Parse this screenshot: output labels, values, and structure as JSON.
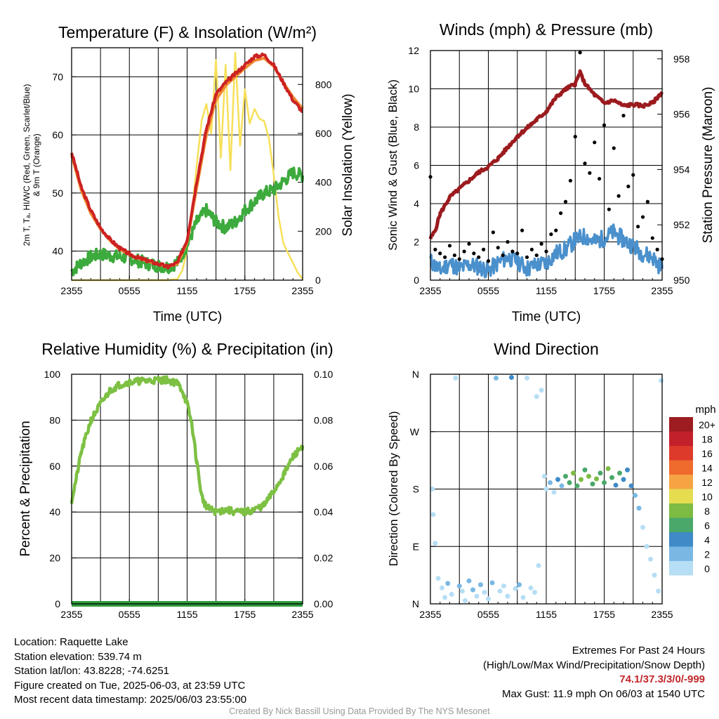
{
  "panels": {
    "temp": {
      "title": "Temperature (F) & Insolation (W/m²)",
      "ylabel_left_line1": "2m T, Tₐ, HI/WC (Red, Green, Scarlet/Blue)",
      "ylabel_left_line2": "& 9m T (Orange)",
      "ylabel_right": "Solar Insolation (Yellow)",
      "xlabel": "Time (UTC)"
    },
    "wind": {
      "title": "Winds (mph) & Pressure (mb)",
      "ylabel_left": "Sonic Wind & Gust (Blue, Black)",
      "ylabel_right": "Station Pressure (Maroon)",
      "xlabel": "Time (UTC)"
    },
    "rh": {
      "title": "Relative Humidity (%) & Precipitation (in)",
      "ylabel_left": "Percent & Precipitation"
    },
    "dir": {
      "title": "Wind Direction",
      "ylabel_left": "Direction (Colored By Speed)",
      "colorbar_title": "mph",
      "colorbar_labels": [
        "20+",
        "18",
        "16",
        "14",
        "12",
        "10",
        "8",
        "6",
        "4",
        "2",
        "0"
      ],
      "colorbar_colors": [
        "#9c1c1f",
        "#c2202a",
        "#dd3a2c",
        "#ef6a2d",
        "#f6a443",
        "#e6dc50",
        "#7dbb43",
        "#4aa86a",
        "#3f8ac7",
        "#7ab8e3",
        "#b6def5"
      ]
    }
  },
  "footer": {
    "location": "Location: Raquette Lake",
    "elevation": "Station elevation: 539.74 m",
    "latlon": "Station lat/lon: 43.8228; -74.6251",
    "created": "Figure created on Tue, 2025-06-03, at 23:59 UTC",
    "recent": "Most recent data timestamp: 2025/06/03 23:55:00",
    "extremes_title": "Extremes For Past 24 Hours",
    "extremes_legend": "(High/Low/Max Wind/Precipitation/Snow Depth)",
    "extremes_values": "74.1/37.3/3/0/-999",
    "max_gust": "Max Gust: 11.9 mph On 06/03 at 1540 UTC",
    "credit": "Created By Nick Bassill Using Data Provided By The NYS Mesonet"
  },
  "chart_data": [
    {
      "type": "line",
      "name": "temp",
      "x_tick_labels": [
        "2355",
        "0555",
        "1155",
        "1755",
        "2355"
      ],
      "x_range_hours": [
        0,
        24
      ],
      "ylim": [
        35,
        75
      ],
      "y_ticks": [
        40,
        50,
        60,
        70
      ],
      "y2lim": [
        0,
        950
      ],
      "y2_ticks": [
        0,
        200,
        400,
        600,
        800
      ],
      "colors": {
        "temp_2m": "#cc2222",
        "temp_9m": "#f08a30",
        "dewpoint": "#3caa3c",
        "insolation": "#f6e05a"
      },
      "series": [
        {
          "key": "temp_2m",
          "x": [
            0,
            1,
            2,
            3,
            4,
            5,
            6,
            7,
            8,
            9,
            10,
            11,
            12,
            13,
            14,
            15,
            16,
            17,
            18,
            19,
            20,
            21,
            22,
            23,
            24
          ],
          "y": [
            57,
            51,
            47,
            44,
            42,
            40.5,
            39.5,
            38.8,
            38.3,
            37.8,
            37.3,
            38,
            42,
            52,
            61,
            67,
            69,
            70.5,
            72,
            73.5,
            73.8,
            72,
            69,
            66,
            64
          ]
        },
        {
          "key": "temp_9m",
          "x": [
            0,
            1,
            2,
            3,
            4,
            5,
            6,
            7,
            8,
            9,
            10,
            11,
            12,
            13,
            14,
            15,
            16,
            17,
            18,
            19,
            20,
            21,
            22,
            23,
            24
          ],
          "y": [
            56.5,
            50.5,
            46.5,
            43.8,
            41.8,
            40.3,
            39.4,
            38.7,
            38.2,
            37.7,
            37.3,
            37.8,
            41.5,
            51,
            60,
            66,
            68.5,
            70,
            71.5,
            72.8,
            73.2,
            71.8,
            69,
            66.5,
            64.5
          ]
        },
        {
          "key": "dewpoint",
          "x": [
            0,
            1,
            2,
            3,
            4,
            5,
            6,
            7,
            8,
            9,
            10,
            11,
            12,
            13,
            14,
            15,
            16,
            17,
            18,
            19,
            20,
            21,
            22,
            23,
            24
          ],
          "y": [
            36.5,
            38,
            39,
            39.5,
            39.2,
            39,
            38.8,
            38.3,
            37.8,
            37.5,
            37.3,
            38,
            41,
            45,
            47,
            45,
            44,
            45,
            47,
            48.5,
            50,
            50.5,
            52,
            53.5,
            53
          ]
        },
        {
          "key": "insolation",
          "x": [
            0,
            1,
            2,
            3,
            4,
            5,
            6,
            7,
            8,
            9,
            10,
            11,
            11.5,
            12,
            12.5,
            13,
            13.5,
            14,
            14.5,
            15,
            15.5,
            16,
            16.5,
            17,
            17.5,
            18,
            18.5,
            19,
            19.5,
            20,
            20.5,
            21,
            21.5,
            22,
            22.5,
            23,
            23.5,
            24
          ],
          "y": [
            0,
            0,
            0,
            0,
            0,
            0,
            0,
            0,
            0,
            0,
            0,
            5,
            40,
            120,
            280,
            470,
            650,
            720,
            600,
            900,
            500,
            880,
            450,
            930,
            550,
            780,
            640,
            700,
            660,
            650,
            580,
            430,
            260,
            150,
            110,
            70,
            30,
            5
          ]
        }
      ]
    },
    {
      "type": "line",
      "name": "wind",
      "x_tick_labels": [
        "2355",
        "0555",
        "1155",
        "1755",
        "2355"
      ],
      "x_range_hours": [
        0,
        24
      ],
      "ylim": [
        0,
        12
      ],
      "y_ticks": [
        0,
        2,
        4,
        6,
        8,
        10,
        12
      ],
      "y2lim": [
        950,
        958.3
      ],
      "y2_ticks": [
        950,
        952,
        954,
        956,
        958
      ],
      "colors": {
        "wind": "#4a90cc",
        "gust": "#000000",
        "pressure": "#9b1b1f"
      },
      "series": [
        {
          "key": "pressure",
          "x": [
            0,
            0.5,
            1,
            2,
            3,
            4,
            5,
            6,
            7,
            8,
            9,
            10,
            11,
            12,
            13,
            14,
            15,
            15.5,
            16,
            17,
            18,
            19,
            20,
            21,
            22,
            23,
            24
          ],
          "y": [
            951.5,
            951.8,
            952.4,
            953,
            953.3,
            953.6,
            953.9,
            954.1,
            954.4,
            954.8,
            955.2,
            955.5,
            955.8,
            956.1,
            956.6,
            956.9,
            957.1,
            957.5,
            957.1,
            956.7,
            956.4,
            956.5,
            956.3,
            956.35,
            956.3,
            956.4,
            956.8
          ]
        },
        {
          "key": "wind",
          "x": [
            0,
            1,
            2,
            3,
            4,
            5,
            6,
            7,
            8,
            9,
            10,
            11,
            12,
            13,
            14,
            15,
            16,
            17,
            18,
            19,
            20,
            21,
            22,
            23,
            24
          ],
          "y": [
            1.0,
            0.5,
            0.9,
            0.6,
            0.8,
            0.7,
            0.5,
            0.9,
            1.2,
            1.0,
            0.6,
            0.8,
            0.9,
            1.4,
            1.6,
            2.1,
            2.3,
            2.0,
            2.2,
            2.5,
            2.1,
            1.8,
            1.4,
            1.2,
            0.6
          ]
        },
        {
          "key": "gust",
          "x": [
            0,
            0.5,
            1,
            1.5,
            2,
            2.5,
            3,
            3.5,
            4,
            4.5,
            5,
            5.5,
            6,
            6.5,
            7,
            7.5,
            8,
            8.5,
            9,
            9.5,
            10,
            10.5,
            11,
            11.5,
            12,
            12.5,
            13,
            13.5,
            14,
            14.5,
            15,
            15.5,
            16,
            16.5,
            17,
            17.5,
            18,
            18.5,
            19,
            19.5,
            20,
            20.5,
            21,
            21.5,
            22,
            22.5,
            23,
            23.5,
            24
          ],
          "y": [
            5.4,
            1.6,
            1.4,
            1.2,
            1.8,
            1.3,
            1.1,
            1.5,
            1.9,
            1.4,
            1.2,
            1.6,
            1.0,
            2.5,
            1.7,
            1.3,
            2.0,
            1.5,
            1.4,
            2.6,
            1.2,
            1.6,
            1.3,
            1.9,
            1.5,
            2.4,
            2.6,
            3.5,
            4.1,
            5.2,
            7.5,
            11.9,
            6.1,
            5.6,
            7.2,
            5.3,
            8.1,
            3.7,
            6.9,
            4.4,
            8.6,
            4.9,
            5.5,
            2.8,
            3.3,
            4.1,
            2.2,
            1.6,
            1.1
          ]
        }
      ]
    },
    {
      "type": "line",
      "name": "rh",
      "x_tick_labels": [
        "2355",
        "0555",
        "1155",
        "1755",
        "2355"
      ],
      "x_range_hours": [
        0,
        24
      ],
      "ylim": [
        0,
        100
      ],
      "y_ticks": [
        0,
        20,
        40,
        60,
        80,
        100
      ],
      "y2lim": [
        0,
        0.1
      ],
      "y2_ticks": [
        "0.00",
        "0.02",
        "0.04",
        "0.06",
        "0.08",
        "0.10"
      ],
      "colors": {
        "rh": "#7dc043",
        "precip": "#2e9b3c"
      },
      "series": [
        {
          "key": "rh",
          "x": [
            0,
            0.5,
            1,
            2,
            3,
            4,
            5,
            6,
            7,
            8,
            9,
            10,
            11,
            11.5,
            12,
            12.5,
            13,
            13.5,
            14,
            15,
            16,
            17,
            18,
            19,
            20,
            21,
            22,
            23,
            24
          ],
          "y": [
            45,
            55,
            66,
            80,
            87,
            93,
            95.5,
            96.5,
            97,
            97.2,
            97.5,
            97.5,
            96,
            93,
            87,
            78,
            62,
            47,
            42,
            40,
            41,
            40,
            40,
            41,
            43,
            49,
            56,
            64,
            69
          ]
        },
        {
          "key": "precip",
          "x": [
            0,
            24
          ],
          "y": [
            0,
            0
          ]
        }
      ]
    },
    {
      "type": "scatter",
      "name": "wind_direction",
      "x_tick_labels": [
        "2355",
        "0555",
        "1155",
        "1755",
        "2355"
      ],
      "x_range_hours": [
        0,
        24
      ],
      "y_tick_labels": [
        "N",
        "E",
        "S",
        "W",
        "N"
      ],
      "ylim": [
        0,
        360
      ],
      "points": [
        {
          "t": 0.2,
          "dir": 180,
          "spd": 0
        },
        {
          "t": 0.3,
          "dir": 140,
          "spd": 0
        },
        {
          "t": 0.5,
          "dir": 95,
          "spd": 0
        },
        {
          "t": 0.8,
          "dir": 40,
          "spd": 0
        },
        {
          "t": 1.2,
          "dir": 25,
          "spd": 0
        },
        {
          "t": 1.5,
          "dir": 10,
          "spd": 0
        },
        {
          "t": 1.8,
          "dir": 32,
          "spd": 1
        },
        {
          "t": 2.2,
          "dir": 15,
          "spd": 0
        },
        {
          "t": 2.6,
          "dir": 354,
          "spd": 0
        },
        {
          "t": 3.0,
          "dir": 28,
          "spd": 1
        },
        {
          "t": 3.3,
          "dir": 20,
          "spd": 0
        },
        {
          "t": 3.6,
          "dir": 5,
          "spd": 0
        },
        {
          "t": 4.0,
          "dir": 36,
          "spd": 1
        },
        {
          "t": 4.4,
          "dir": 22,
          "spd": 1
        },
        {
          "t": 4.8,
          "dir": 12,
          "spd": 0
        },
        {
          "t": 5.2,
          "dir": 30,
          "spd": 1
        },
        {
          "t": 5.6,
          "dir": 18,
          "spd": 0
        },
        {
          "t": 6.0,
          "dir": 8,
          "spd": 0
        },
        {
          "t": 6.4,
          "dir": 33,
          "spd": 1
        },
        {
          "t": 6.8,
          "dir": 354,
          "spd": 1
        },
        {
          "t": 7.2,
          "dir": 20,
          "spd": 0
        },
        {
          "t": 7.6,
          "dir": 28,
          "spd": 0
        },
        {
          "t": 8.0,
          "dir": 12,
          "spd": 0
        },
        {
          "t": 8.4,
          "dir": 355,
          "spd": 2
        },
        {
          "t": 8.8,
          "dir": 24,
          "spd": 0
        },
        {
          "t": 9.2,
          "dir": 30,
          "spd": 1
        },
        {
          "t": 9.6,
          "dir": 10,
          "spd": 0
        },
        {
          "t": 10.0,
          "dir": 354,
          "spd": 0
        },
        {
          "t": 10.4,
          "dir": 25,
          "spd": 0
        },
        {
          "t": 10.8,
          "dir": 18,
          "spd": 0
        },
        {
          "t": 11.0,
          "dir": 325,
          "spd": 0
        },
        {
          "t": 11.2,
          "dir": 60,
          "spd": 0
        },
        {
          "t": 11.5,
          "dir": 335,
          "spd": 0
        },
        {
          "t": 11.8,
          "dir": 200,
          "spd": 0
        },
        {
          "t": 12.0,
          "dir": 180,
          "spd": 0
        },
        {
          "t": 12.4,
          "dir": 190,
          "spd": 1
        },
        {
          "t": 12.8,
          "dir": 175,
          "spd": 0
        },
        {
          "t": 13.2,
          "dir": 195,
          "spd": 2
        },
        {
          "t": 13.6,
          "dir": 185,
          "spd": 1
        },
        {
          "t": 14.0,
          "dir": 200,
          "spd": 3
        },
        {
          "t": 14.4,
          "dir": 190,
          "spd": 3
        },
        {
          "t": 14.8,
          "dir": 205,
          "spd": 4
        },
        {
          "t": 15.2,
          "dir": 185,
          "spd": 3
        },
        {
          "t": 15.6,
          "dir": 195,
          "spd": 4
        },
        {
          "t": 16.0,
          "dir": 210,
          "spd": 3
        },
        {
          "t": 16.4,
          "dir": 200,
          "spd": 4
        },
        {
          "t": 16.8,
          "dir": 188,
          "spd": 3
        },
        {
          "t": 17.2,
          "dir": 196,
          "spd": 4
        },
        {
          "t": 17.6,
          "dir": 205,
          "spd": 3
        },
        {
          "t": 18.0,
          "dir": 190,
          "spd": 3
        },
        {
          "t": 18.4,
          "dir": 212,
          "spd": 4
        },
        {
          "t": 18.8,
          "dir": 198,
          "spd": 3
        },
        {
          "t": 19.2,
          "dir": 186,
          "spd": 2
        },
        {
          "t": 19.6,
          "dir": 205,
          "spd": 3
        },
        {
          "t": 20.0,
          "dir": 195,
          "spd": 2
        },
        {
          "t": 20.4,
          "dir": 210,
          "spd": 2
        },
        {
          "t": 20.8,
          "dir": 185,
          "spd": 2
        },
        {
          "t": 21.2,
          "dir": 170,
          "spd": 1
        },
        {
          "t": 21.6,
          "dir": 150,
          "spd": 1
        },
        {
          "t": 22.0,
          "dir": 120,
          "spd": 0
        },
        {
          "t": 22.4,
          "dir": 90,
          "spd": 0
        },
        {
          "t": 22.8,
          "dir": 70,
          "spd": 0
        },
        {
          "t": 23.2,
          "dir": 45,
          "spd": 0
        },
        {
          "t": 23.6,
          "dir": 20,
          "spd": 0
        },
        {
          "t": 23.9,
          "dir": 350,
          "spd": 0
        }
      ]
    }
  ]
}
